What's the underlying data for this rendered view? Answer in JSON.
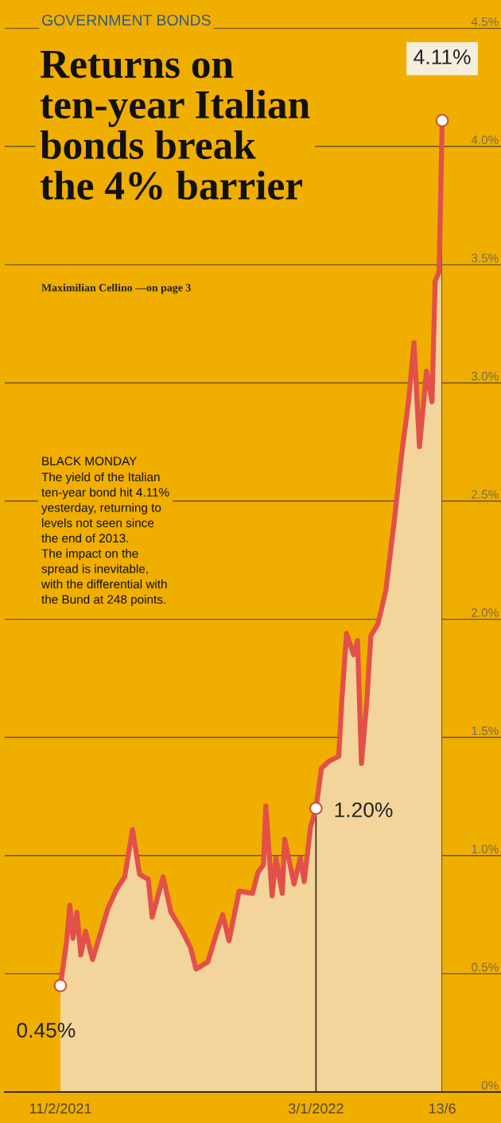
{
  "chart_data": {
    "type": "area",
    "subtitle": "GOVERNMENT BONDS",
    "title": "Returns on\nten-year Italian\nbonds break\nthe 4% barrier",
    "annotations": [
      "Maximilian Cellino —on page 3",
      "BLACK MONDAY",
      "The yield of the Italian\nten-year bond hit 4.11%\nyesterday, returning to\nlevels not seen since\nthe end of 2013.\nThe impact on the\nspread is inevitable,\nwith the differential with\nthe Bund at 248 points.",
      {
        "text": "0.45%",
        "x": "2021-02-11",
        "y": 0.45
      },
      {
        "text": "1.20%",
        "x": "2022-01-03",
        "y": 1.2
      },
      {
        "text": "4.11%",
        "x": "2022-06-13",
        "y": 4.11
      }
    ],
    "series": [
      {
        "color": "#e2504a",
        "x": [
          "2021-02-11",
          "2021-02-19",
          "2021-02-23",
          "2021-02-27",
          "2021-03-04",
          "2021-03-09",
          "2021-03-15",
          "2021-03-24",
          "2021-04-02",
          "2021-04-13",
          "2021-04-24",
          "2021-05-04",
          "2021-05-14",
          "2021-05-23",
          "2021-06-03",
          "2021-06-08",
          "2021-06-22",
          "2021-07-02",
          "2021-07-15",
          "2021-07-27",
          "2021-08-03",
          "2021-08-18",
          "2021-08-28",
          "2021-09-06",
          "2021-09-14",
          "2021-09-27",
          "2021-10-14",
          "2021-10-21",
          "2021-10-28",
          "2021-10-31",
          "2021-11-08",
          "2021-11-13",
          "2021-11-21",
          "2021-11-24",
          "2021-12-06",
          "2021-12-14",
          "2021-12-19",
          "2021-12-27",
          "2022-01-03",
          "2022-01-10",
          "2022-01-20",
          "2022-02-01",
          "2022-02-05",
          "2022-02-11",
          "2022-02-20",
          "2022-02-25",
          "2022-03-02",
          "2022-03-09",
          "2022-03-14",
          "2022-03-23",
          "2022-04-02",
          "2022-04-13",
          "2022-04-22",
          "2022-05-01",
          "2022-05-08",
          "2022-05-15",
          "2022-05-24",
          "2022-05-31",
          "2022-06-04",
          "2022-06-09",
          "2022-06-13"
        ],
        "values": [
          0.45,
          0.64,
          0.79,
          0.65,
          0.76,
          0.58,
          0.68,
          0.56,
          0.66,
          0.78,
          0.86,
          0.91,
          1.11,
          0.92,
          0.9,
          0.74,
          0.91,
          0.76,
          0.69,
          0.61,
          0.52,
          0.55,
          0.66,
          0.75,
          0.64,
          0.85,
          0.84,
          0.93,
          0.96,
          1.21,
          0.83,
          0.99,
          0.84,
          1.07,
          0.88,
          0.99,
          0.89,
          1.12,
          1.2,
          1.37,
          1.4,
          1.42,
          1.66,
          1.94,
          1.85,
          1.91,
          1.39,
          1.66,
          1.93,
          1.98,
          2.12,
          2.42,
          2.69,
          2.92,
          3.17,
          2.73,
          3.05,
          2.92,
          3.43,
          3.47,
          4.11
        ]
      }
    ],
    "xlim": [
      "2020-12-02",
      "2022-08-27"
    ],
    "xticks": [
      {
        "value": "2021-02-11",
        "label": "11/2/2021"
      },
      {
        "value": "2022-01-03",
        "label": "3/1/2022"
      },
      {
        "value": "2022-06-13",
        "label": "13/6"
      }
    ],
    "ylim": [
      0,
      4.62
    ],
    "yticks": [
      {
        "value": 0,
        "label": "0%"
      },
      {
        "value": 0.5,
        "label": "0.5%"
      },
      {
        "value": 1,
        "label": "1.0%"
      },
      {
        "value": 1.5,
        "label": "1.5%"
      },
      {
        "value": 2,
        "label": "2.0%"
      },
      {
        "value": 2.5,
        "label": "2.5%"
      },
      {
        "value": 3,
        "label": "3.0%"
      },
      {
        "value": 3.5,
        "label": "3.5%"
      },
      {
        "value": 4,
        "label": "4.0%"
      },
      {
        "value": 4.5,
        "label": "4.5%"
      }
    ],
    "ref_lines": [
      {
        "axis": "x",
        "value": "2022-01-03"
      },
      {
        "axis": "x",
        "value": "2022-06-13"
      }
    ],
    "grid": "y",
    "marker": "none",
    "line_style": "solid"
  }
}
